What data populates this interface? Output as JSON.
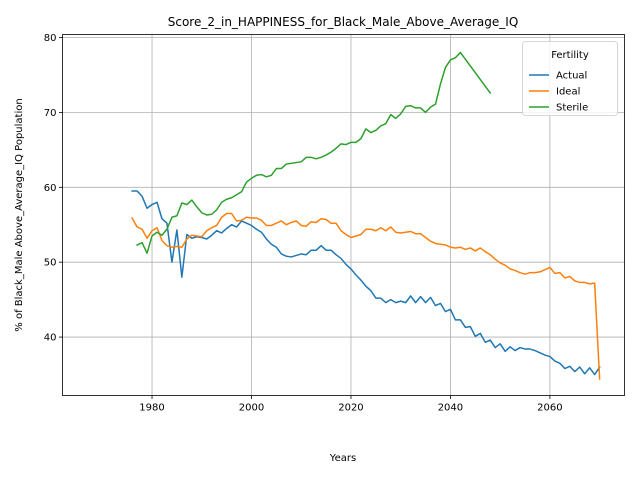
{
  "chart_data": {
    "type": "line",
    "title": "Score_2_in_HAPPINESS_for_Black_Male_Above_Average_IQ",
    "xlabel": "Years",
    "ylabel": "% of Black_Male Above_Average_IQ Population",
    "xlim": [
      1962,
      2075
    ],
    "ylim": [
      32.2,
      80.4
    ],
    "xticks": [
      1980,
      2000,
      2020,
      2040,
      2060
    ],
    "yticks": [
      40,
      50,
      60,
      70,
      80
    ],
    "grid": true,
    "legend": {
      "title": "Fertility",
      "placement": "top-right"
    },
    "series": [
      {
        "name": "Actual",
        "color": "#1f77b4",
        "x": [
          1976,
          1977,
          1978,
          1979,
          1980,
          1981,
          1982,
          1983,
          1984,
          1985,
          1986,
          1987,
          1988,
          1989,
          1990,
          1991,
          1992,
          1993,
          1994,
          1995,
          1996,
          1997,
          1998,
          1999,
          2000,
          2001,
          2002,
          2003,
          2004,
          2005,
          2006,
          2007,
          2008,
          2009,
          2010,
          2011,
          2012,
          2013,
          2014,
          2015,
          2016,
          2017,
          2018,
          2019,
          2020,
          2021,
          2022,
          2023,
          2024,
          2025,
          2026,
          2027,
          2028,
          2029,
          2030,
          2031,
          2032,
          2033,
          2034,
          2035,
          2036,
          2037,
          2038,
          2039,
          2040,
          2041,
          2042,
          2043,
          2044,
          2045,
          2046,
          2047,
          2048,
          2049,
          2050,
          2051,
          2052,
          2053,
          2054,
          2055,
          2056,
          2057,
          2058,
          2059,
          2060,
          2061,
          2062,
          2063,
          2064,
          2065,
          2066,
          2067,
          2068,
          2069,
          2070
        ],
        "y": [
          59.5,
          59.5,
          58.8,
          57.2,
          57.7,
          58.0,
          55.8,
          55.2,
          50.0,
          54.3,
          48.0,
          53.7,
          53.2,
          53.4,
          53.3,
          53.1,
          53.6,
          54.2,
          53.9,
          54.5,
          55.0,
          54.7,
          55.5,
          55.2,
          54.9,
          54.4,
          54.0,
          53.1,
          52.4,
          52.0,
          51.1,
          50.8,
          50.7,
          50.9,
          51.1,
          51.0,
          51.6,
          51.6,
          52.2,
          51.6,
          51.6,
          51.0,
          50.5,
          49.7,
          49.1,
          48.3,
          47.6,
          46.8,
          46.2,
          45.2,
          45.2,
          44.6,
          45.0,
          44.6,
          44.8,
          44.6,
          45.5,
          44.6,
          45.4,
          44.6,
          45.3,
          44.2,
          44.5,
          43.4,
          43.7,
          42.3,
          42.3,
          41.3,
          41.4,
          40.1,
          40.5,
          39.3,
          39.6,
          38.6,
          39.1,
          38.1,
          38.7,
          38.2,
          38.6,
          38.4,
          38.4,
          38.2,
          37.9,
          37.6,
          37.4,
          36.8,
          36.5,
          35.8,
          36.1,
          35.4,
          36.0,
          35.1,
          35.9,
          35.0,
          36.0
        ]
      },
      {
        "name": "Ideal",
        "color": "#ff7f0e",
        "x": [
          1976,
          1977,
          1978,
          1979,
          1980,
          1981,
          1982,
          1983,
          1984,
          1985,
          1986,
          1987,
          1988,
          1989,
          1990,
          1991,
          1992,
          1993,
          1994,
          1995,
          1996,
          1997,
          1998,
          1999,
          2000,
          2001,
          2002,
          2003,
          2004,
          2005,
          2006,
          2007,
          2008,
          2009,
          2010,
          2011,
          2012,
          2013,
          2014,
          2015,
          2016,
          2017,
          2018,
          2019,
          2020,
          2021,
          2022,
          2023,
          2024,
          2025,
          2026,
          2027,
          2028,
          2029,
          2030,
          2031,
          2032,
          2033,
          2034,
          2035,
          2036,
          2037,
          2038,
          2039,
          2040,
          2041,
          2042,
          2043,
          2044,
          2045,
          2046,
          2047,
          2048,
          2049,
          2050,
          2051,
          2052,
          2053,
          2054,
          2055,
          2056,
          2057,
          2058,
          2059,
          2060,
          2061,
          2062,
          2063,
          2064,
          2065,
          2066,
          2067,
          2068,
          2069,
          2070
        ],
        "y": [
          55.9,
          54.7,
          54.4,
          53.2,
          54.2,
          54.6,
          52.9,
          52.2,
          52.0,
          52.1,
          52.0,
          53.1,
          53.6,
          53.5,
          53.4,
          54.2,
          54.6,
          54.9,
          56.0,
          56.5,
          56.5,
          55.5,
          55.6,
          56.0,
          55.9,
          55.9,
          55.6,
          54.9,
          54.9,
          55.2,
          55.5,
          55.0,
          55.3,
          55.5,
          54.9,
          54.8,
          55.4,
          55.3,
          55.8,
          55.7,
          55.2,
          55.2,
          54.2,
          53.7,
          53.3,
          53.5,
          53.7,
          54.4,
          54.4,
          54.2,
          54.6,
          54.2,
          54.7,
          54.0,
          53.9,
          54.0,
          54.1,
          53.8,
          53.8,
          53.3,
          52.8,
          52.5,
          52.4,
          52.3,
          52.0,
          51.9,
          52.0,
          51.7,
          51.9,
          51.5,
          51.9,
          51.4,
          51.0,
          50.4,
          49.9,
          49.6,
          49.1,
          48.9,
          48.6,
          48.4,
          48.6,
          48.6,
          48.7,
          49.0,
          49.3,
          48.5,
          48.6,
          47.9,
          48.1,
          47.5,
          47.3,
          47.3,
          47.1,
          47.2,
          34.4
        ]
      },
      {
        "name": "Sterile",
        "color": "#2ca02c",
        "x": [
          1977,
          1978,
          1979,
          1980,
          1981,
          1982,
          1983,
          1984,
          1985,
          1986,
          1987,
          1988,
          1989,
          1990,
          1991,
          1992,
          1993,
          1994,
          1995,
          1996,
          1997,
          1998,
          1999,
          2000,
          2001,
          2002,
          2003,
          2004,
          2005,
          2006,
          2007,
          2008,
          2009,
          2010,
          2011,
          2012,
          2013,
          2014,
          2015,
          2016,
          2017,
          2018,
          2019,
          2020,
          2021,
          2022,
          2023,
          2024,
          2025,
          2026,
          2027,
          2028,
          2029,
          2030,
          2031,
          2032,
          2033,
          2034,
          2035,
          2036,
          2037,
          2038,
          2039,
          2040,
          2041,
          2042,
          2043,
          2044,
          2045,
          2046,
          2047,
          2048
        ],
        "y": [
          52.3,
          52.6,
          51.2,
          53.5,
          54.0,
          53.6,
          54.4,
          56.0,
          56.2,
          57.9,
          57.7,
          58.3,
          57.4,
          56.6,
          56.3,
          56.4,
          57.0,
          58.0,
          58.4,
          58.6,
          59.0,
          59.4,
          60.7,
          61.2,
          61.6,
          61.7,
          61.4,
          61.6,
          62.5,
          62.5,
          63.1,
          63.2,
          63.3,
          63.4,
          64.0,
          64.0,
          63.8,
          64.0,
          64.3,
          64.7,
          65.2,
          65.8,
          65.7,
          66.0,
          66.0,
          66.5,
          67.8,
          67.3,
          67.6,
          68.2,
          68.5,
          69.7,
          69.2,
          69.8,
          70.8,
          70.9,
          70.6,
          70.6,
          70.0,
          70.7,
          71.1,
          73.8,
          76.0,
          77.0,
          77.3,
          78.0,
          77.1,
          76.2,
          75.3,
          74.4,
          73.5,
          72.6
        ]
      }
    ]
  }
}
